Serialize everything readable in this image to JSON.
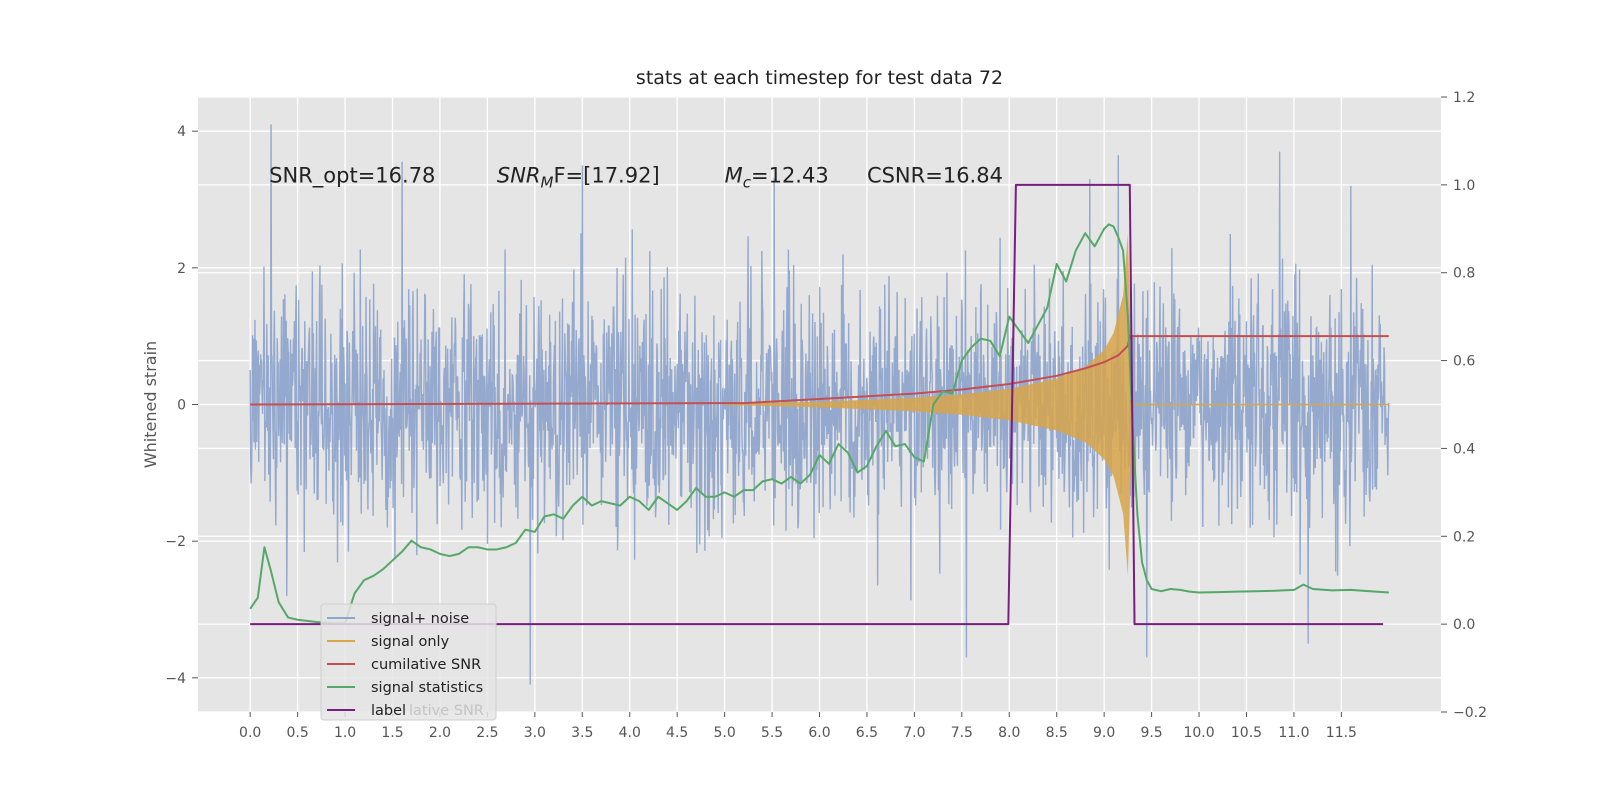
{
  "chart_data": {
    "type": "line",
    "title": "stats at each timestep for test data 72",
    "xlabel": "",
    "ylabel": "Whitened strain",
    "ylabel_right": "",
    "xlim": [
      -0.55,
      12.55
    ],
    "ylim": [
      -4.5,
      4.5
    ],
    "ylim_right": [
      -0.2,
      1.2
    ],
    "x_ticks": [
      "0.0",
      "0.5",
      "1.0",
      "1.5",
      "2.0",
      "2.5",
      "3.0",
      "3.5",
      "4.0",
      "4.5",
      "5.0",
      "5.5",
      "6.0",
      "6.5",
      "7.0",
      "7.5",
      "8.0",
      "8.5",
      "9.0",
      "9.5",
      "10.0",
      "10.5",
      "11.0",
      "11.5"
    ],
    "y_ticks_left": [
      "4",
      "2",
      "0",
      "−2",
      "−4"
    ],
    "y_ticks_right": [
      "1.2",
      "1.0",
      "0.8",
      "0.6",
      "0.4",
      "0.2",
      "0.0",
      "−0.2"
    ],
    "grid": true,
    "legend_position": "lower-left",
    "legend": [
      "signal+ noise",
      "signal only",
      "cumilative SNR",
      "signal statistics",
      "label"
    ],
    "legend_ghost_text": "lative SNR",
    "colors": {
      "noise": "#8fa5cb",
      "signal": "#d7a54a",
      "cumulative": "#c44e52",
      "stats": "#55a868",
      "label": "#7a1d80",
      "plot_bg": "#e5e5e5",
      "grid": "#ffffff"
    },
    "annotations": [
      {
        "text": "SNR_opt=16.78",
        "x": 0.2,
        "y": 3.35
      },
      {
        "text": "F=[17.92]",
        "math_main": "SNR",
        "math_sub": "M",
        "x": 2.6,
        "y": 3.35
      },
      {
        "text": "=12.43",
        "math_main": "M",
        "math_sub": "c",
        "x": 5.0,
        "y": 3.35
      },
      {
        "text": "CSNR=16.84",
        "x": 6.5,
        "y": 3.35
      }
    ],
    "series": [
      {
        "name": "signal+ noise",
        "axis": "left",
        "kind": "noise",
        "duration": 12.0,
        "amplitude_std": 0.85,
        "samples": 2400,
        "spikes": [
          [
            0.22,
            4.1
          ],
          [
            1.6,
            3.55
          ],
          [
            2.95,
            -4.1
          ],
          [
            3.5,
            3.5
          ],
          [
            7.55,
            -3.7
          ],
          [
            8.85,
            3.3
          ],
          [
            9.15,
            3.65
          ],
          [
            9.45,
            -3.7
          ],
          [
            10.85,
            3.7
          ],
          [
            11.15,
            -3.5
          ],
          [
            11.6,
            3.2
          ]
        ]
      },
      {
        "name": "signal only",
        "axis": "left",
        "kind": "envelope",
        "x": [
          5.0,
          6.0,
          7.0,
          7.5,
          8.0,
          8.5,
          8.8,
          9.0,
          9.1,
          9.2,
          9.25,
          9.3
        ],
        "amplitude": [
          0.01,
          0.04,
          0.1,
          0.15,
          0.23,
          0.38,
          0.55,
          0.8,
          1.05,
          1.6,
          2.5,
          0.0
        ]
      },
      {
        "name": "cumilative SNR",
        "axis": "left",
        "kind": "line",
        "x": [
          0.0,
          5.0,
          5.2,
          6.0,
          7.0,
          7.5,
          8.0,
          8.5,
          8.8,
          9.0,
          9.15,
          9.25,
          9.27,
          12.0
        ],
        "y": [
          0.0,
          0.02,
          0.02,
          0.08,
          0.16,
          0.22,
          0.3,
          0.42,
          0.53,
          0.62,
          0.72,
          0.86,
          1.0,
          1.0
        ]
      },
      {
        "name": "signal statistics",
        "axis": "right",
        "kind": "line",
        "x": [
          0.0,
          0.08,
          0.15,
          0.22,
          0.3,
          0.4,
          0.5,
          0.7,
          0.9,
          1.0,
          1.1,
          1.2,
          1.3,
          1.4,
          1.5,
          1.6,
          1.7,
          1.8,
          1.9,
          2.0,
          2.1,
          2.2,
          2.3,
          2.4,
          2.5,
          2.6,
          2.7,
          2.8,
          2.9,
          3.0,
          3.1,
          3.2,
          3.3,
          3.4,
          3.5,
          3.6,
          3.7,
          3.8,
          3.9,
          4.0,
          4.1,
          4.2,
          4.3,
          4.4,
          4.5,
          4.6,
          4.7,
          4.8,
          4.9,
          5.0,
          5.1,
          5.2,
          5.3,
          5.4,
          5.5,
          5.6,
          5.7,
          5.8,
          5.9,
          6.0,
          6.1,
          6.2,
          6.3,
          6.4,
          6.5,
          6.6,
          6.7,
          6.8,
          6.9,
          7.0,
          7.1,
          7.2,
          7.3,
          7.4,
          7.5,
          7.6,
          7.7,
          7.8,
          7.9,
          8.0,
          8.1,
          8.2,
          8.3,
          8.4,
          8.5,
          8.6,
          8.7,
          8.8,
          8.9,
          9.0,
          9.05,
          9.1,
          9.15,
          9.2,
          9.25,
          9.3,
          9.35,
          9.4,
          9.45,
          9.5,
          9.6,
          9.7,
          9.8,
          9.9,
          10.0,
          10.2,
          10.4,
          10.6,
          10.8,
          11.0,
          11.1,
          11.2,
          11.4,
          11.6,
          11.8,
          12.0
        ],
        "y": [
          0.035,
          0.06,
          0.175,
          0.12,
          0.05,
          0.015,
          0.01,
          0.005,
          0.002,
          0.002,
          0.07,
          0.1,
          0.11,
          0.125,
          0.145,
          0.165,
          0.19,
          0.175,
          0.17,
          0.16,
          0.155,
          0.16,
          0.175,
          0.175,
          0.17,
          0.17,
          0.175,
          0.185,
          0.215,
          0.21,
          0.245,
          0.25,
          0.24,
          0.27,
          0.29,
          0.27,
          0.28,
          0.275,
          0.27,
          0.29,
          0.28,
          0.26,
          0.29,
          0.275,
          0.26,
          0.28,
          0.31,
          0.29,
          0.29,
          0.3,
          0.29,
          0.305,
          0.305,
          0.325,
          0.33,
          0.32,
          0.335,
          0.32,
          0.34,
          0.385,
          0.365,
          0.41,
          0.39,
          0.345,
          0.36,
          0.405,
          0.44,
          0.405,
          0.41,
          0.38,
          0.37,
          0.5,
          0.53,
          0.525,
          0.6,
          0.63,
          0.65,
          0.645,
          0.61,
          0.7,
          0.67,
          0.64,
          0.68,
          0.72,
          0.82,
          0.78,
          0.85,
          0.89,
          0.86,
          0.9,
          0.91,
          0.905,
          0.88,
          0.85,
          0.7,
          0.45,
          0.25,
          0.14,
          0.1,
          0.08,
          0.075,
          0.08,
          0.078,
          0.074,
          0.072,
          0.073,
          0.074,
          0.075,
          0.076,
          0.078,
          0.09,
          0.08,
          0.077,
          0.078,
          0.075,
          0.072
        ]
      },
      {
        "name": "label",
        "axis": "right",
        "kind": "line",
        "x": [
          0.0,
          7.99,
          8.07,
          9.27,
          9.32,
          11.94
        ],
        "y": [
          0.0,
          0.0,
          1.0,
          1.0,
          0.0,
          0.0
        ]
      }
    ]
  }
}
